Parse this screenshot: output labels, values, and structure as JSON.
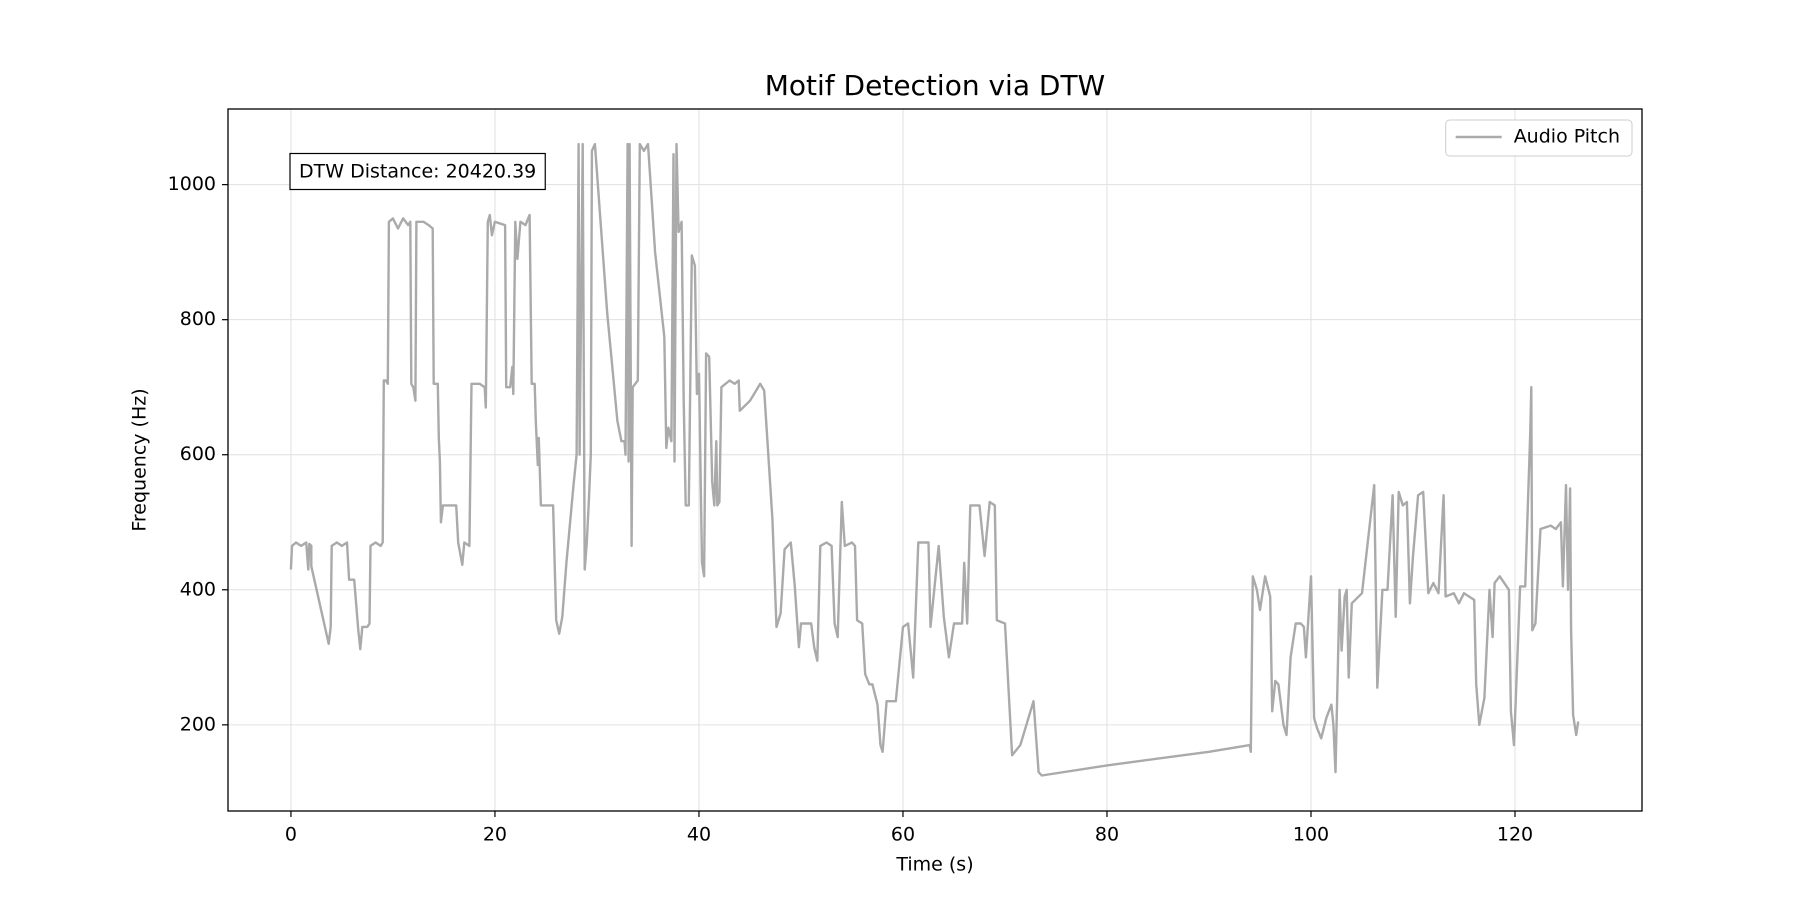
{
  "chart_data": {
    "type": "line",
    "title": "Motif Detection via DTW",
    "xlabel": "Time (s)",
    "ylabel": "Frequency (Hz)",
    "annotation": "DTW Distance: 20420.39",
    "legend": "upper right",
    "grid": true,
    "xlim": [
      -6.17,
      132.45
    ],
    "ylim": [
      72.4,
      1112
    ],
    "xticks": [
      0,
      20,
      40,
      60,
      80,
      100,
      120
    ],
    "yticks": [
      200,
      400,
      600,
      800,
      1000
    ],
    "x": [
      0,
      0.1,
      0.5,
      1,
      1.5,
      1.7,
      1.8,
      2,
      2,
      3.7,
      3.9,
      4,
      4.5,
      5,
      5.5,
      5.7,
      6.2,
      6.6,
      6.8,
      7,
      7.5,
      7.7,
      7.8,
      8.3,
      8.8,
      9,
      9.1,
      9.3,
      9.5,
      9.6,
      10,
      10.5,
      11,
      11.5,
      11.7,
      11.8,
      12,
      12.2,
      12.3,
      13,
      13.5,
      13.9,
      14,
      14.4,
      14.5,
      14.6,
      14.7,
      14.9,
      15.5,
      16.2,
      16.4,
      16.8,
      17,
      17.5,
      17.7,
      18.5,
      19,
      19.1,
      19.3,
      19.5,
      19.7,
      20,
      21,
      21.1,
      21.5,
      21.7,
      21.8,
      22,
      22.2,
      22.5,
      23,
      23.4,
      23.6,
      23.9,
      24,
      24.2,
      24.3,
      24.5,
      25,
      25.7,
      26,
      26.3,
      26.6,
      27,
      27.7,
      28,
      28.2,
      28.3,
      28.6,
      28.8,
      29,
      29.2,
      29.4,
      29.5,
      29.8,
      31,
      32,
      32.4,
      32.7,
      32.8,
      33,
      33.1,
      33.2,
      33.4,
      33.5,
      34,
      34.2,
      34.6,
      35,
      35.7,
      36.6,
      36.8,
      37,
      37.3,
      37.5,
      37.6,
      37.8,
      38,
      38.3,
      38.5,
      38.7,
      39,
      39.3,
      39.6,
      39.8,
      40,
      40.3,
      40.5,
      40.7,
      41,
      41.3,
      41.5,
      41.7,
      41.8,
      42,
      42.2,
      43,
      43.5,
      43.9,
      44,
      45,
      46,
      46.4,
      47.2,
      47.6,
      48,
      48.4,
      49,
      49.4,
      49.8,
      50,
      51,
      51.3,
      51.6,
      51.9,
      52.5,
      53,
      53.3,
      53.6,
      54,
      54.3,
      55,
      55.3,
      55.5,
      56,
      56.3,
      56.7,
      57,
      57.5,
      57.8,
      58,
      58.4,
      59.3,
      60,
      60.5,
      61,
      61.5,
      62,
      62.5,
      62.7,
      63.5,
      64,
      64.5,
      65,
      65.8,
      66,
      66.3,
      66.6,
      67.5,
      68,
      68.5,
      69,
      69.2,
      70,
      70.7,
      71.5,
      72,
      72.8,
      73.3,
      73.6,
      80,
      90,
      94,
      94.1,
      94.3,
      94.7,
      95,
      95.5,
      96,
      96.2,
      96.5,
      96.8,
      97.3,
      97.6,
      98,
      98.5,
      99,
      99.3,
      99.5,
      100,
      100.3,
      100.6,
      101,
      101.5,
      102,
      102.2,
      102.4,
      102.8,
      103,
      103.3,
      103.5,
      103.7,
      104,
      105,
      106.2,
      106.5,
      107,
      107.5,
      108,
      108.3,
      108.6,
      109,
      109.4,
      109.7,
      110,
      110.5,
      111,
      111.5,
      112,
      112.5,
      113,
      113.2,
      114,
      114.5,
      115,
      116,
      116.2,
      116.5,
      117,
      117.5,
      117.8,
      118,
      118.5,
      119.4,
      119.6,
      119.9,
      120.5,
      121,
      121.5,
      121.6,
      121.7,
      122,
      122.5,
      123.5,
      124,
      124.5,
      124.7,
      125,
      125.2,
      125.4,
      125.5,
      125.7,
      126,
      126.2
    ],
    "series": [
      {
        "name": "Audio Pitch",
        "color": "#aaaaaa",
        "values": [
          430,
          465,
          470,
          465,
          470,
          430,
          468,
          465,
          435,
          320,
          345,
          465,
          470,
          465,
          470,
          415,
          415,
          340,
          312,
          345,
          345,
          350,
          465,
          470,
          465,
          470,
          710,
          710,
          705,
          945,
          950,
          935,
          950,
          940,
          945,
          705,
          700,
          680,
          945,
          945,
          940,
          935,
          705,
          705,
          625,
          590,
          500,
          525,
          525,
          525,
          470,
          437,
          470,
          465,
          705,
          705,
          700,
          670,
          945,
          955,
          925,
          945,
          940,
          700,
          700,
          730,
          690,
          945,
          890,
          945,
          940,
          955,
          705,
          705,
          650,
          585,
          625,
          525,
          525,
          525,
          355,
          335,
          360,
          440,
          555,
          600,
          1060,
          600,
          1060,
          430,
          470,
          530,
          600,
          1050,
          1060,
          810,
          650,
          620,
          620,
          600,
          1060,
          590,
          1060,
          465,
          700,
          710,
          1060,
          1050,
          1060,
          900,
          775,
          610,
          640,
          620,
          1045,
          590,
          1060,
          930,
          945,
          680,
          525,
          525,
          895,
          880,
          690,
          720,
          440,
          420,
          750,
          745,
          560,
          525,
          620,
          525,
          530,
          700,
          710,
          705,
          710,
          665,
          680,
          705,
          695,
          505,
          345,
          365,
          460,
          470,
          405,
          315,
          350,
          350,
          315,
          295,
          465,
          470,
          465,
          350,
          330,
          530,
          465,
          470,
          465,
          355,
          350,
          275,
          260,
          260,
          230,
          170,
          160,
          235,
          235,
          345,
          350,
          270,
          470,
          470,
          470,
          345,
          465,
          360,
          300,
          350,
          350,
          440,
          350,
          525,
          525,
          450,
          530,
          525,
          355,
          350,
          155,
          170,
          195,
          235,
          130,
          125,
          140,
          160,
          170,
          160,
          420,
          400,
          370,
          420,
          390,
          220,
          265,
          260,
          200,
          185,
          300,
          350,
          350,
          345,
          300,
          420,
          210,
          195,
          180,
          210,
          230,
          200,
          130,
          400,
          310,
          390,
          400,
          270,
          380,
          395,
          555,
          255,
          400,
          400,
          540,
          360,
          545,
          525,
          530,
          380,
          450,
          540,
          545,
          395,
          410,
          395,
          540,
          390,
          395,
          380,
          395,
          385,
          260,
          200,
          240,
          400,
          330,
          410,
          420,
          400,
          220,
          170,
          405,
          405,
          635,
          700,
          340,
          350,
          490,
          495,
          490,
          500,
          405,
          555,
          400,
          550,
          340,
          215,
          185,
          205
        ]
      }
    ]
  }
}
